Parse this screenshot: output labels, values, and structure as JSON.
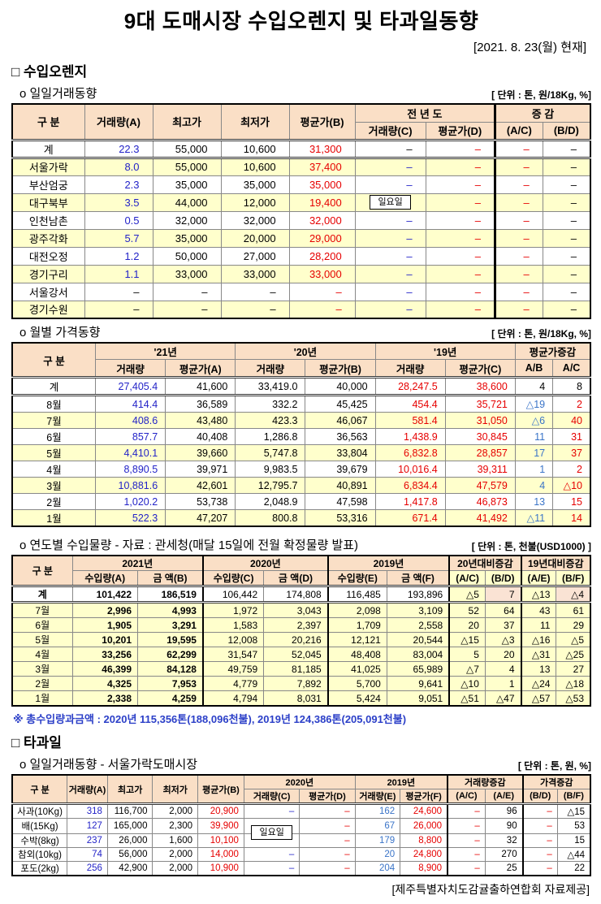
{
  "page": {
    "title": "9대 도매시장 수입오렌지 및 타과일동향",
    "date": "[2021. 8. 23(월) 현재]",
    "footer": "[제주특별자치도감귤출하연합회 자료제공]"
  },
  "sections": {
    "orange": "□ 수입오렌지",
    "other_fruits": "□ 타과일"
  },
  "footnote": "※ 총수입량과금액 : 2020년 115,356톤(188,096천불),  2019년 124,386톤(205,091천불)",
  "colors": {
    "header_bg": "#FADFC6",
    "zebra_yellow": "#FFFFCC",
    "change_pink": "#FAE3D4",
    "value_blue": "#2323c8",
    "value_light_blue": "#3a74c8",
    "value_red": "#e60000"
  },
  "tables": {
    "daily": {
      "caption": "o 일일거래동향",
      "unit": "[ 단위 : 톤, 원/18Kg, %]",
      "cls": "t-daily",
      "col_widths": [
        12.5,
        11.8,
        11.8,
        11.8,
        11.4,
        12.2,
        12.0,
        8.25,
        8.25
      ],
      "col_cls": [
        "lbl",
        "c-b",
        "c-k",
        "c-k",
        "c-r",
        "c-b",
        "c-r",
        "c-r",
        "c-k"
      ],
      "col_bcls": [
        "",
        "",
        "",
        "",
        "",
        "",
        "",
        "thl",
        ""
      ],
      "header": [
        [
          {
            "t": "구      분",
            "rs": 2
          },
          {
            "t": "거래량(A)",
            "rs": 2
          },
          {
            "t": "최고가",
            "rs": 2
          },
          {
            "t": "최저가",
            "rs": 2
          },
          {
            "t": "평균가(B)",
            "rs": 2
          },
          {
            "t": "전 년 도",
            "cs": 2
          },
          {
            "t": "증   감",
            "cs": 2,
            "cls": "thl"
          }
        ],
        [
          {
            "t": "거래량(C)"
          },
          {
            "t": "평균가(D)"
          },
          {
            "t": "(A/C)",
            "cls": "thl"
          },
          {
            "t": "(B/D)"
          }
        ]
      ],
      "rows": [
        {
          "label": "계",
          "bg": "w",
          "sep": true,
          "cells": [
            "22.3",
            "55,000",
            "10,600",
            "31,300",
            {
              "t": "–",
              "c": "k"
            },
            "–",
            "–",
            "–"
          ]
        },
        {
          "label": "서울가락",
          "bg": "y",
          "cells": [
            "8.0",
            "55,000",
            "10,600",
            "37,400",
            "–",
            "–",
            "–",
            "–"
          ]
        },
        {
          "label": "부산엄궁",
          "bg": "w",
          "cells": [
            "2.3",
            "35,000",
            "35,000",
            "35,000",
            "–",
            "–",
            "–",
            "–"
          ]
        },
        {
          "label": "대구북부",
          "bg": "y",
          "cells": [
            "3.5",
            "44,000",
            "12,000",
            "19,400",
            {
              "t": "일요일",
              "box": true
            },
            "–",
            "–",
            "–"
          ]
        },
        {
          "label": "인천남촌",
          "bg": "w",
          "cells": [
            "0.5",
            "32,000",
            "32,000",
            "32,000",
            "–",
            "–",
            "–",
            "–"
          ]
        },
        {
          "label": "광주각화",
          "bg": "y",
          "cells": [
            "5.7",
            "35,000",
            "20,000",
            "29,000",
            "–",
            "–",
            "–",
            "–"
          ]
        },
        {
          "label": "대전오정",
          "bg": "w",
          "cells": [
            "1.2",
            "50,000",
            "27,000",
            "28,200",
            "–",
            "–",
            "–",
            "–"
          ]
        },
        {
          "label": "경기구리",
          "bg": "y",
          "cells": [
            "1.1",
            "33,000",
            "33,000",
            "33,000",
            "–",
            "–",
            "–",
            "–"
          ]
        },
        {
          "label": "서울강서",
          "bg": "w",
          "cells": [
            {
              "t": "–",
              "c": "k"
            },
            "–",
            "–",
            "–",
            "–",
            "–",
            "–",
            "–"
          ]
        },
        {
          "label": "경기수원",
          "bg": "y",
          "cells": [
            {
              "t": "–",
              "c": "k"
            },
            "–",
            "–",
            "–",
            "–",
            "–",
            "–",
            "–"
          ]
        }
      ]
    },
    "monthly": {
      "caption": "o 월별 가격동향",
      "unit": "[ 단위 : 톤, 원/18Kg, %]",
      "cls": "t-monthly",
      "col_widths": [
        14.4,
        12.1,
        12.1,
        12.1,
        12.1,
        12.1,
        12.1,
        6.5,
        6.5
      ],
      "col_cls": [
        "lbl",
        "c-b",
        "c-k",
        "c-k",
        "c-k",
        "c-r",
        "c-r",
        "c-lb",
        "c-r"
      ],
      "col_bcls": [
        "",
        "",
        "dotl",
        "",
        "dotl",
        "",
        "dotl",
        "",
        "dotl"
      ],
      "header": [
        [
          {
            "t": "구      분",
            "rs": 2
          },
          {
            "t": "'21년",
            "cs": 2
          },
          {
            "t": "'20년",
            "cs": 2
          },
          {
            "t": "'19년",
            "cs": 2
          },
          {
            "t": "평균가증감",
            "cs": 2
          }
        ],
        [
          {
            "t": "거래량"
          },
          {
            "t": "평균가(A)",
            "cls": "dotl"
          },
          {
            "t": "거래량"
          },
          {
            "t": "평균가(B)",
            "cls": "dotl"
          },
          {
            "t": "거래량"
          },
          {
            "t": "평균가(C)",
            "cls": "dotl"
          },
          {
            "t": "A/B"
          },
          {
            "t": "A/C",
            "cls": "dotl"
          }
        ]
      ],
      "rows": [
        {
          "label": "계",
          "bg": "w",
          "sep": true,
          "cells": [
            "27,405.4",
            "41,600",
            "33,419.0",
            "40,000",
            "28,247.5",
            "38,600",
            {
              "t": "4",
              "c": "k"
            },
            {
              "t": "8",
              "c": "k"
            }
          ]
        },
        {
          "label": "8월",
          "bg": "w",
          "cells": [
            "414.4",
            "36,589",
            "332.2",
            "45,425",
            "454.4",
            "35,721",
            "△19",
            "2"
          ]
        },
        {
          "label": "7월",
          "bg": "y",
          "cells": [
            "408.6",
            "43,480",
            "423.3",
            "46,067",
            "581.4",
            "31,050",
            "△6",
            "40"
          ]
        },
        {
          "label": "6월",
          "bg": "w",
          "cells": [
            "857.7",
            "40,408",
            "1,286.8",
            "36,563",
            "1,438.9",
            "30,845",
            "11",
            "31"
          ]
        },
        {
          "label": "5월",
          "bg": "y",
          "cells": [
            "4,410.1",
            "39,660",
            "5,747.8",
            "33,804",
            "6,832.8",
            "28,857",
            "17",
            "37"
          ]
        },
        {
          "label": "4월",
          "bg": "w",
          "cells": [
            "8,890.5",
            "39,971",
            "9,983.5",
            "39,679",
            "10,016.4",
            "39,311",
            "1",
            "2"
          ]
        },
        {
          "label": "3월",
          "bg": "y",
          "cells": [
            "10,881.6",
            "42,601",
            "12,795.7",
            "40,891",
            "6,834.4",
            "47,579",
            "4",
            "△10"
          ]
        },
        {
          "label": "2월",
          "bg": "w",
          "cells": [
            "1,020.2",
            "53,738",
            "2,048.9",
            "47,598",
            "1,417.8",
            "46,873",
            "13",
            "15"
          ]
        },
        {
          "label": "1월",
          "bg": "y",
          "cells": [
            "522.3",
            "47,207",
            "800.8",
            "53,316",
            "671.4",
            "41,492",
            "△11",
            "14"
          ]
        }
      ]
    },
    "yearly": {
      "caption": "o 연도별 수입물량 - 자료 : 관세청(매달 15일에 전월 확정물량 발표)",
      "unit": "[ 단위 : 톤, 천불(USD1000) ]",
      "cls": "t-yearly",
      "col_widths": [
        10.4,
        11.3,
        11.3,
        10.5,
        11.1,
        10.2,
        10.8,
        6.2,
        6.2,
        6.1,
        5.9
      ],
      "col_cls": [
        "lbl",
        "c-kb",
        "c-kb",
        "c-k",
        "c-k",
        "c-k",
        "c-k",
        "c-k",
        "c-k",
        "c-k",
        "c-k"
      ],
      "col_bcls": [
        "",
        "",
        "",
        "thk",
        "",
        "thk",
        "",
        "thk",
        "",
        "thk",
        ""
      ],
      "col_bg": [
        "bg-w",
        "",
        "",
        "",
        "",
        "",
        "",
        "bg-y",
        "bg-p",
        "bg-y",
        "bg-p"
      ],
      "header": [
        [
          {
            "t": "구 분",
            "rs": 2
          },
          {
            "t": "2021년",
            "cs": 2
          },
          {
            "t": "2020년",
            "cs": 2,
            "cls": "thk"
          },
          {
            "t": "2019년",
            "cs": 2,
            "cls": "thk"
          },
          {
            "t": "20년대비증감",
            "cs": 2,
            "cls": "thk"
          },
          {
            "t": "19년대비증감",
            "cs": 2,
            "cls": "thk"
          }
        ],
        [
          {
            "t": "수입량(A)"
          },
          {
            "t": "금  액(B)"
          },
          {
            "t": "수입량(C)",
            "cls": "thk"
          },
          {
            "t": "금  액(D)"
          },
          {
            "t": "수입량(E)",
            "cls": "thk"
          },
          {
            "t": "금  액(F)"
          },
          {
            "t": "(A/C)",
            "cls": "thk small bg-y"
          },
          {
            "t": "(B/D)",
            "cls": "small bg-y"
          },
          {
            "t": "(A/E)",
            "cls": "thk small bg-y"
          },
          {
            "t": "(B/F)",
            "cls": "small bg-y"
          }
        ]
      ],
      "rows": [
        {
          "label": "계",
          "lb": true,
          "bg": "w",
          "sep": true,
          "cells": [
            "101,422",
            "186,519",
            "106,442",
            "174,808",
            "116,485",
            "193,896",
            "△5",
            "7",
            "△13",
            "△4"
          ]
        },
        {
          "label": "7월",
          "bg": "y",
          "cells": [
            "2,996",
            "4,993",
            "1,972",
            "3,043",
            "2,098",
            "3,109",
            "52",
            "64",
            "43",
            "61"
          ]
        },
        {
          "label": "6월",
          "bg": "y",
          "cells": [
            "1,905",
            "3,291",
            "1,583",
            "2,397",
            "1,709",
            "2,558",
            "20",
            "37",
            "11",
            "29"
          ]
        },
        {
          "label": "5월",
          "bg": "y",
          "cells": [
            "10,201",
            "19,595",
            "12,008",
            "20,216",
            "12,121",
            "20,544",
            "△15",
            "△3",
            "△16",
            "△5"
          ]
        },
        {
          "label": "4월",
          "bg": "y",
          "cells": [
            "33,256",
            "62,299",
            "31,547",
            "52,045",
            "48,408",
            "83,004",
            "5",
            "20",
            "△31",
            "△25"
          ]
        },
        {
          "label": "3월",
          "bg": "y",
          "cells": [
            "46,399",
            "84,128",
            "49,759",
            "81,185",
            "41,025",
            "65,989",
            "△7",
            "4",
            "13",
            "27"
          ]
        },
        {
          "label": "2월",
          "bg": "y",
          "cells": [
            "4,325",
            "7,953",
            "4,779",
            "7,892",
            "5,700",
            "9,641",
            "△10",
            "1",
            "△24",
            "△18"
          ]
        },
        {
          "label": "1월",
          "bg": "y",
          "cells": [
            "2,338",
            "4,259",
            "4,794",
            "8,031",
            "5,424",
            "9,051",
            "△51",
            "△47",
            "△57",
            "△53"
          ]
        }
      ]
    },
    "fruits": {
      "caption": "o 일일거래동향 - 서울가락도매시장",
      "unit": "[ 단위 : 톤, 원, %]",
      "cls": "t-fruits",
      "col_widths": [
        9.5,
        7.0,
        7.8,
        7.8,
        8.0,
        9.6,
        9.6,
        7.8,
        8.2,
        6.5,
        6.5,
        6.0,
        5.7
      ],
      "col_cls": [
        "lbl",
        "c-b",
        "c-k",
        "c-k",
        "c-r",
        "c-b",
        "c-r",
        "c-lb",
        "c-r",
        "c-r",
        "c-k",
        "c-r",
        "c-k"
      ],
      "col_bcls": [
        "",
        "",
        "",
        "",
        "",
        "",
        "",
        "",
        "",
        "thk",
        "",
        "thk",
        ""
      ],
      "header": [
        [
          {
            "t": "구  분",
            "rs": 2
          },
          {
            "t": "거래량(A)",
            "rs": 2
          },
          {
            "t": "최고가",
            "rs": 2
          },
          {
            "t": "최저가",
            "rs": 2
          },
          {
            "t": "평균가(B)",
            "rs": 2
          },
          {
            "t": "2020년",
            "cs": 2
          },
          {
            "t": "2019년",
            "cs": 2
          },
          {
            "t": "거래량증감",
            "cs": 2,
            "cls": "thk"
          },
          {
            "t": "가격증감",
            "cs": 2,
            "cls": "thk"
          }
        ],
        [
          {
            "t": "거래량(C)"
          },
          {
            "t": "평균가(D)"
          },
          {
            "t": "거래량(E)"
          },
          {
            "t": "평균가(F)"
          },
          {
            "t": "(A/C)",
            "cls": "thk small"
          },
          {
            "t": "(A/E)",
            "cls": "small"
          },
          {
            "t": "(B/D)",
            "cls": "thk small"
          },
          {
            "t": "(B/F)",
            "cls": "small"
          }
        ]
      ],
      "rows": [
        {
          "label": "사과(10Kg)",
          "bg": "w",
          "cells": [
            "318",
            "116,700",
            "2,000",
            "20,900",
            "–",
            "–",
            "162",
            "24,600",
            "–",
            "96",
            "–",
            "△15"
          ]
        },
        {
          "label": "배(15Kg)",
          "bg": "w",
          "cells": [
            "127",
            "165,000",
            "2,300",
            "39,900",
            {
              "t": "일요일",
              "box": "low"
            },
            "–",
            "67",
            "26,000",
            "–",
            "90",
            "–",
            "53"
          ]
        },
        {
          "label": "수박(8kg)",
          "bg": "w",
          "cells": [
            "237",
            "26,000",
            "1,600",
            "10,100",
            "",
            "–",
            "179",
            "8,800",
            "–",
            "32",
            "–",
            "15"
          ]
        },
        {
          "label": "참외(10kg)",
          "bg": "w",
          "cells": [
            "74",
            "56,000",
            "2,000",
            "14,000",
            "–",
            "–",
            "20",
            "24,800",
            "–",
            "270",
            "–",
            "△44"
          ]
        },
        {
          "label": "포도(2kg)",
          "bg": "w",
          "cells": [
            "256",
            "42,900",
            "2,000",
            "10,900",
            "–",
            "–",
            "204",
            "8,900",
            "–",
            "25",
            "–",
            "22"
          ]
        }
      ]
    }
  }
}
